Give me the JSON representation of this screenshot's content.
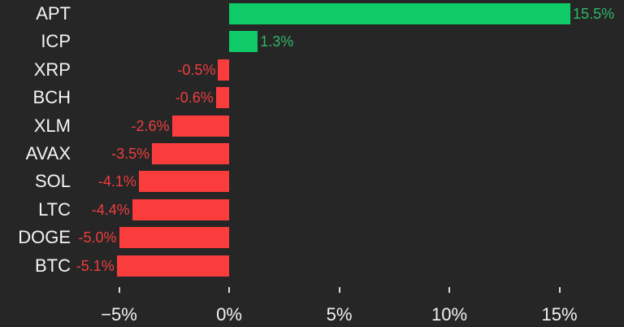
{
  "chart_data": {
    "type": "bar",
    "orientation": "horizontal",
    "title": "",
    "xlabel": "",
    "ylabel": "",
    "grid": false,
    "legend": "none",
    "categories": [
      "APT",
      "ICP",
      "XRP",
      "BCH",
      "XLM",
      "AVAX",
      "SOL",
      "LTC",
      "DOGE",
      "BTC"
    ],
    "values": [
      15.5,
      1.3,
      -0.5,
      -0.6,
      -2.6,
      -3.5,
      -4.1,
      -4.4,
      -5.0,
      -5.1
    ],
    "value_labels": [
      "15.5%",
      "1.3%",
      "-0.5%",
      "-0.6%",
      "-2.6%",
      "-3.5%",
      "-4.1%",
      "-4.4%",
      "-5.0%",
      "-5.1%"
    ],
    "x_axis": {
      "tick_values": [
        -5,
        0,
        5,
        10,
        15
      ],
      "tick_labels": [
        "−5%",
        "0%",
        "5%",
        "10%",
        "15%"
      ],
      "range": [
        -7.5,
        18
      ]
    },
    "colors": {
      "background": "#262626",
      "positive_bar": "#0ecb67",
      "negative_bar": "#fa3c3c",
      "positive_value_text": "#31b767",
      "negative_value_text": "#ef3d3e",
      "category_text": "#f5f5f5",
      "axis_text": "#f2f2f2",
      "tick_mark": "#dcdcdc"
    }
  }
}
